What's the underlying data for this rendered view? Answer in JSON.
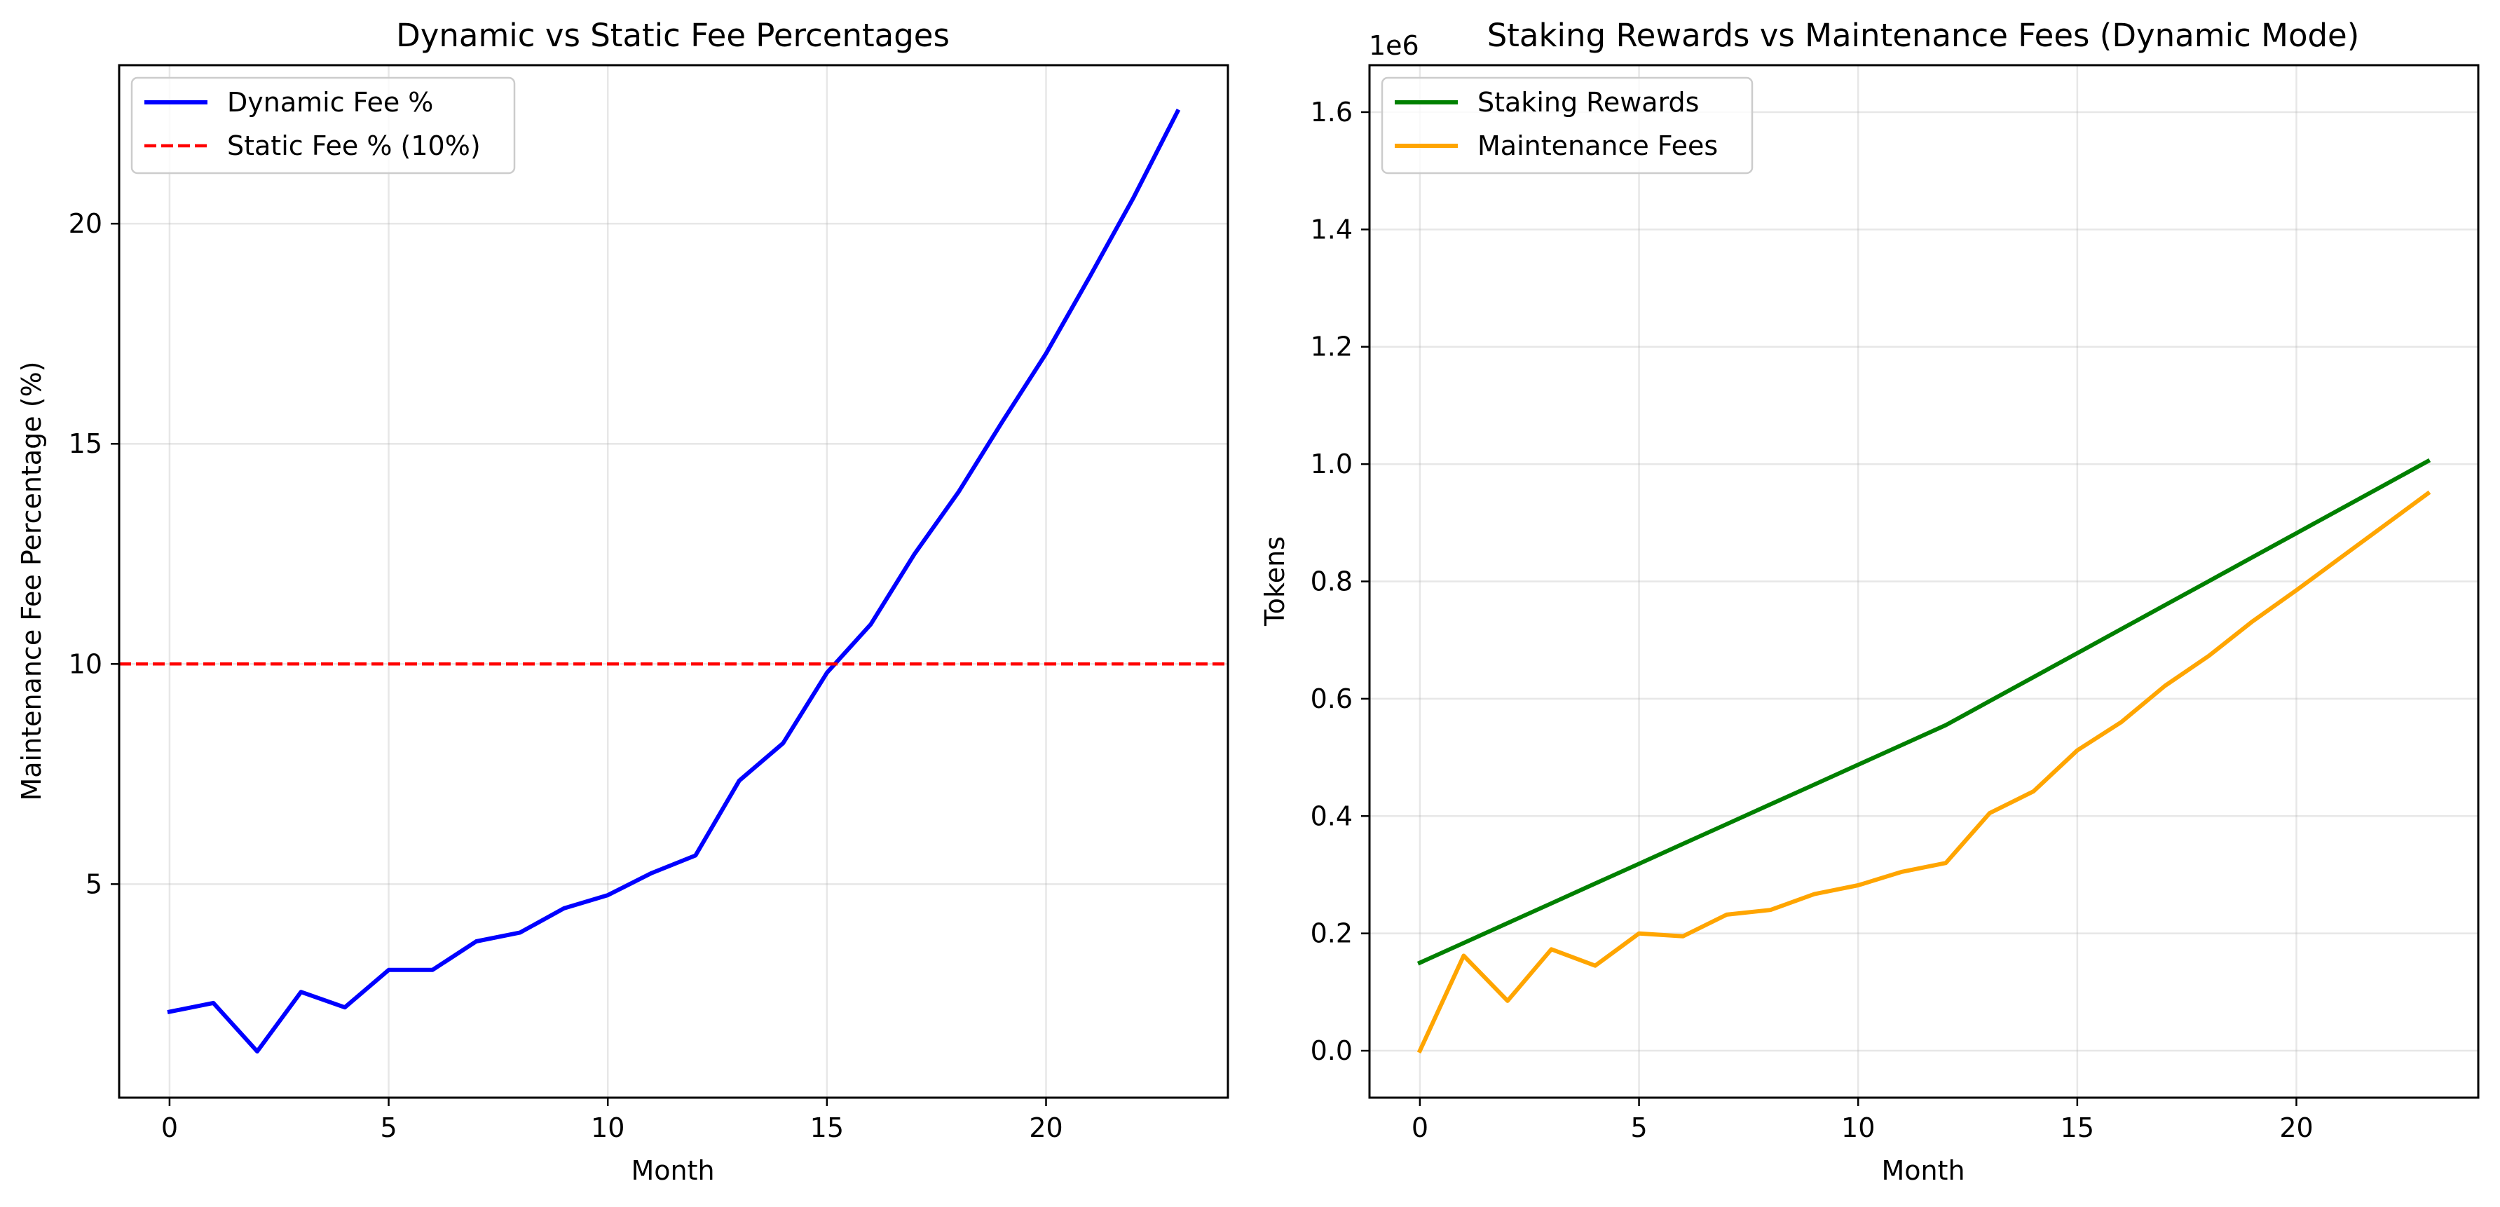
{
  "chart_data": [
    {
      "type": "line",
      "title": "Dynamic vs Static Fee Percentages",
      "xlabel": "Month",
      "ylabel": "Maintenance Fee Percentage (%)",
      "xlim": [
        -1.15,
        24.15
      ],
      "ylim": [
        0.15,
        23.6
      ],
      "xticks": [
        0,
        5,
        10,
        15,
        20
      ],
      "yticks": [
        5,
        10,
        15,
        20
      ],
      "grid": true,
      "legend": "top-left",
      "x": [
        0,
        1,
        2,
        3,
        4,
        5,
        6,
        7,
        8,
        9,
        10,
        11,
        12,
        13,
        14,
        15,
        16,
        17,
        18,
        19,
        20,
        21,
        22,
        23
      ],
      "series": [
        {
          "name": "Dynamic Fee %",
          "color": "#0000ff",
          "style": "solid",
          "values": [
            2.1,
            2.3,
            1.2,
            2.55,
            2.2,
            3.05,
            3.05,
            3.7,
            3.9,
            4.45,
            4.75,
            5.25,
            5.65,
            7.35,
            8.2,
            9.8,
            10.9,
            12.5,
            13.9,
            15.5,
            17.05,
            18.8,
            20.6,
            22.55
          ]
        },
        {
          "name": "Static Fee % (10%)",
          "color": "#ff0000",
          "style": "dashed",
          "constant": 10
        }
      ]
    },
    {
      "type": "line",
      "title": "Staking Rewards vs Maintenance Fees (Dynamic Mode)",
      "xlabel": "Month",
      "ylabel": "Tokens",
      "y_offset_label": "1e6",
      "xlim": [
        -1.15,
        24.15
      ],
      "ylim": [
        -0.08,
        1.68
      ],
      "xticks": [
        0,
        5,
        10,
        15,
        20
      ],
      "yticks": [
        0.0,
        0.2,
        0.4,
        0.6,
        0.8,
        1.0,
        1.2,
        1.4,
        1.6
      ],
      "grid": true,
      "legend": "top-left",
      "x": [
        0,
        1,
        2,
        3,
        4,
        5,
        6,
        7,
        8,
        9,
        10,
        11,
        12,
        13,
        14,
        15,
        16,
        17,
        18,
        19,
        20,
        21,
        22,
        23
      ],
      "series": [
        {
          "name": "Staking Rewards",
          "color": "#008000",
          "style": "solid",
          "values": [
            0.15,
            0.1837,
            0.2175,
            0.2512,
            0.285,
            0.3187,
            0.3525,
            0.3862,
            0.42,
            0.4537,
            0.4875,
            0.5212,
            0.555,
            0.5959,
            0.6368,
            0.6777,
            0.7186,
            0.7595,
            0.8004,
            0.8413,
            0.8822,
            0.9231,
            0.964,
            1.005
          ]
        },
        {
          "name": "Maintenance Fees",
          "color": "#ffa500",
          "style": "solid",
          "values": [
            0.0,
            0.162,
            0.085,
            0.173,
            0.145,
            0.2,
            0.195,
            0.232,
            0.24,
            0.267,
            0.282,
            0.305,
            0.32,
            0.405,
            0.442,
            0.512,
            0.56,
            0.622,
            0.673,
            0.732,
            0.785,
            0.84,
            0.895,
            0.95
          ]
        }
      ]
    }
  ]
}
